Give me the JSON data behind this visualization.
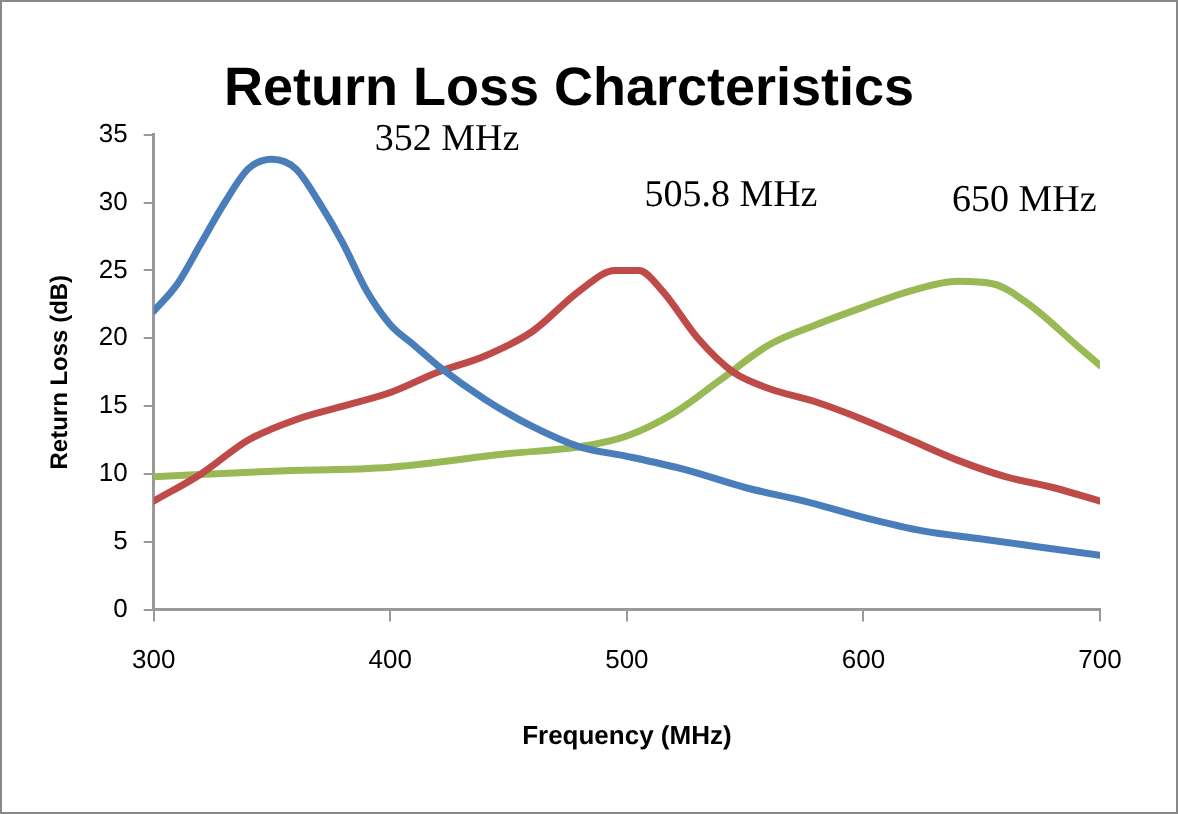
{
  "chart_data": {
    "type": "line",
    "title": "Return Loss Charcteristics",
    "xlabel": "Frequency (MHz)",
    "ylabel": "Return Loss (dB)",
    "xlim": [
      300,
      700
    ],
    "xticks": [
      300,
      400,
      500,
      600,
      700
    ],
    "ylim": [
      0,
      35
    ],
    "yticks": [
      0,
      5,
      10,
      15,
      20,
      25,
      30,
      35
    ],
    "grid": false,
    "legend": false,
    "marker": "none",
    "line_style": "solid",
    "series": [
      {
        "color": "#4a7ebb",
        "x": [
          300,
          310,
          320,
          330,
          340,
          350,
          360,
          370,
          380,
          390,
          400,
          410,
          420,
          440,
          460,
          480,
          500,
          525,
          550,
          575,
          600,
          625,
          650,
          675,
          700
        ],
        "values": [
          22,
          24,
          27,
          30,
          32.5,
          33.2,
          32.5,
          30,
          27,
          23.5,
          21,
          19.5,
          18,
          15.5,
          13.5,
          12,
          11.3,
          10.3,
          9,
          8,
          6.8,
          5.8,
          5.2,
          4.6,
          4
        ]
      },
      {
        "color": "#be4b48",
        "x": [
          300,
          320,
          340,
          360,
          380,
          400,
          420,
          440,
          460,
          480,
          495,
          505,
          515,
          530,
          545,
          560,
          580,
          600,
          620,
          640,
          660,
          680,
          700
        ],
        "values": [
          8,
          10,
          12.5,
          14,
          15,
          16,
          17.5,
          18.7,
          20.5,
          23.5,
          25,
          25,
          23.5,
          20,
          17.5,
          16.3,
          15.3,
          14,
          12.5,
          11,
          9.8,
          9,
          8
        ]
      },
      {
        "color": "#98b954",
        "x": [
          300,
          350,
          400,
          450,
          480,
          500,
          520,
          540,
          560,
          580,
          600,
          620,
          640,
          655,
          670,
          690,
          700
        ],
        "values": [
          9.8,
          10.2,
          10.5,
          11.5,
          12,
          12.8,
          14.5,
          17,
          19.5,
          21,
          22.3,
          23.5,
          24.2,
          24,
          22.5,
          19.5,
          18
        ]
      }
    ],
    "annotations": [
      "352 MHz",
      "505.8 MHz",
      "650 MHz"
    ]
  }
}
